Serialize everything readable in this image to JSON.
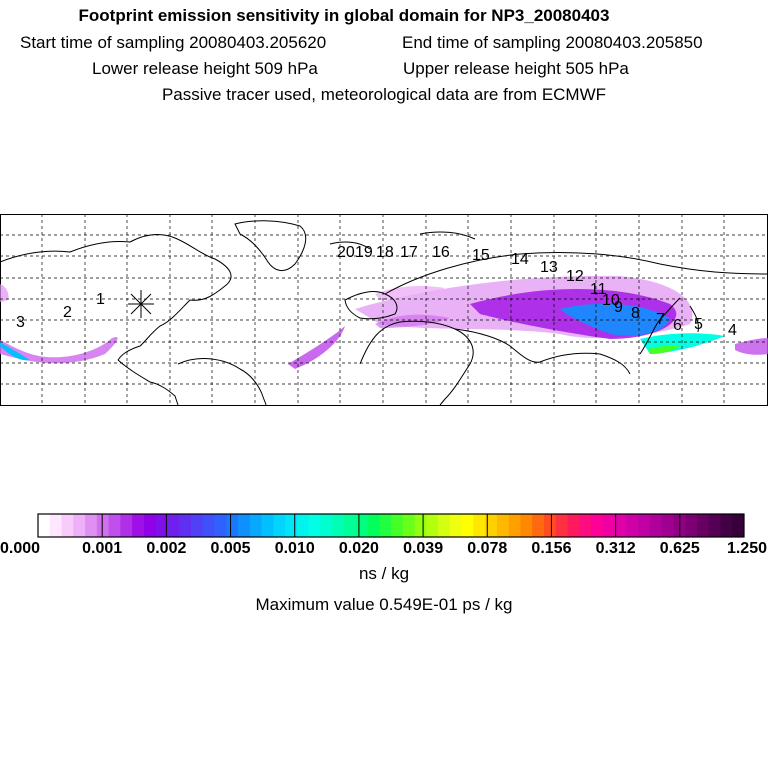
{
  "header": {
    "title": "Footprint emission sensitivity in global domain for NP3_20080403",
    "start_time": "Start time of sampling 20080403.205620",
    "end_time": "End time of sampling 20080403.205850",
    "lower_height": "Lower release height  509 hPa",
    "upper_height": "Upper release height  505 hPa",
    "tracer_note": "Passive tracer used, meteorological data are from ECMWF"
  },
  "map": {
    "release_marker": "release-site-asterisk",
    "day_labels": [
      "1",
      "2",
      "3",
      "4",
      "5",
      "6",
      "7",
      "8",
      "9",
      "10",
      "11",
      "12",
      "13",
      "14",
      "15",
      "16",
      "17",
      "18",
      "19",
      "20"
    ],
    "colors": {
      "coast": "#000000",
      "grid": "#000000"
    }
  },
  "colorbar": {
    "tick_labels": [
      "0.000",
      "0.001",
      "0.002",
      "0.005",
      "0.010",
      "0.020",
      "0.039",
      "0.078",
      "0.156",
      "0.312",
      "0.625",
      "1.250"
    ],
    "colors": [
      "#ffffff",
      "#ffe8ff",
      "#f7ccfb",
      "#eeb0f7",
      "#e090f2",
      "#d070ee",
      "#c050eb",
      "#b030e8",
      "#a010e6",
      "#9000e8",
      "#8010ea",
      "#7020ee",
      "#6030f2",
      "#5040f6",
      "#4050fa",
      "#3060ff",
      "#1a78ff",
      "#1090ff",
      "#08a8ff",
      "#00c0ff",
      "#00d4ff",
      "#00e6f8",
      "#00f4ee",
      "#00ffe4",
      "#00ffd0",
      "#00ffb4",
      "#00ff98",
      "#00ff7c",
      "#00ff5c",
      "#20ff40",
      "#44ff28",
      "#68ff18",
      "#90ff10",
      "#b4ff10",
      "#d4ff10",
      "#f0ff10",
      "#ffff00",
      "#ffe800",
      "#ffd000",
      "#ffb800",
      "#ffa000",
      "#ff8800",
      "#ff6a10",
      "#ff4c20",
      "#ff3040",
      "#ff1a60",
      "#ff0c80",
      "#ff0098",
      "#f000a4",
      "#e000a8",
      "#d000a8",
      "#c000a4",
      "#b0009c",
      "#a00090",
      "#900084",
      "#7c0074",
      "#680064",
      "#540054",
      "#440044",
      "#380038"
    ],
    "unit": "ns / kg",
    "max_value": "Maximum value  0.549E-01 ps / kg"
  }
}
